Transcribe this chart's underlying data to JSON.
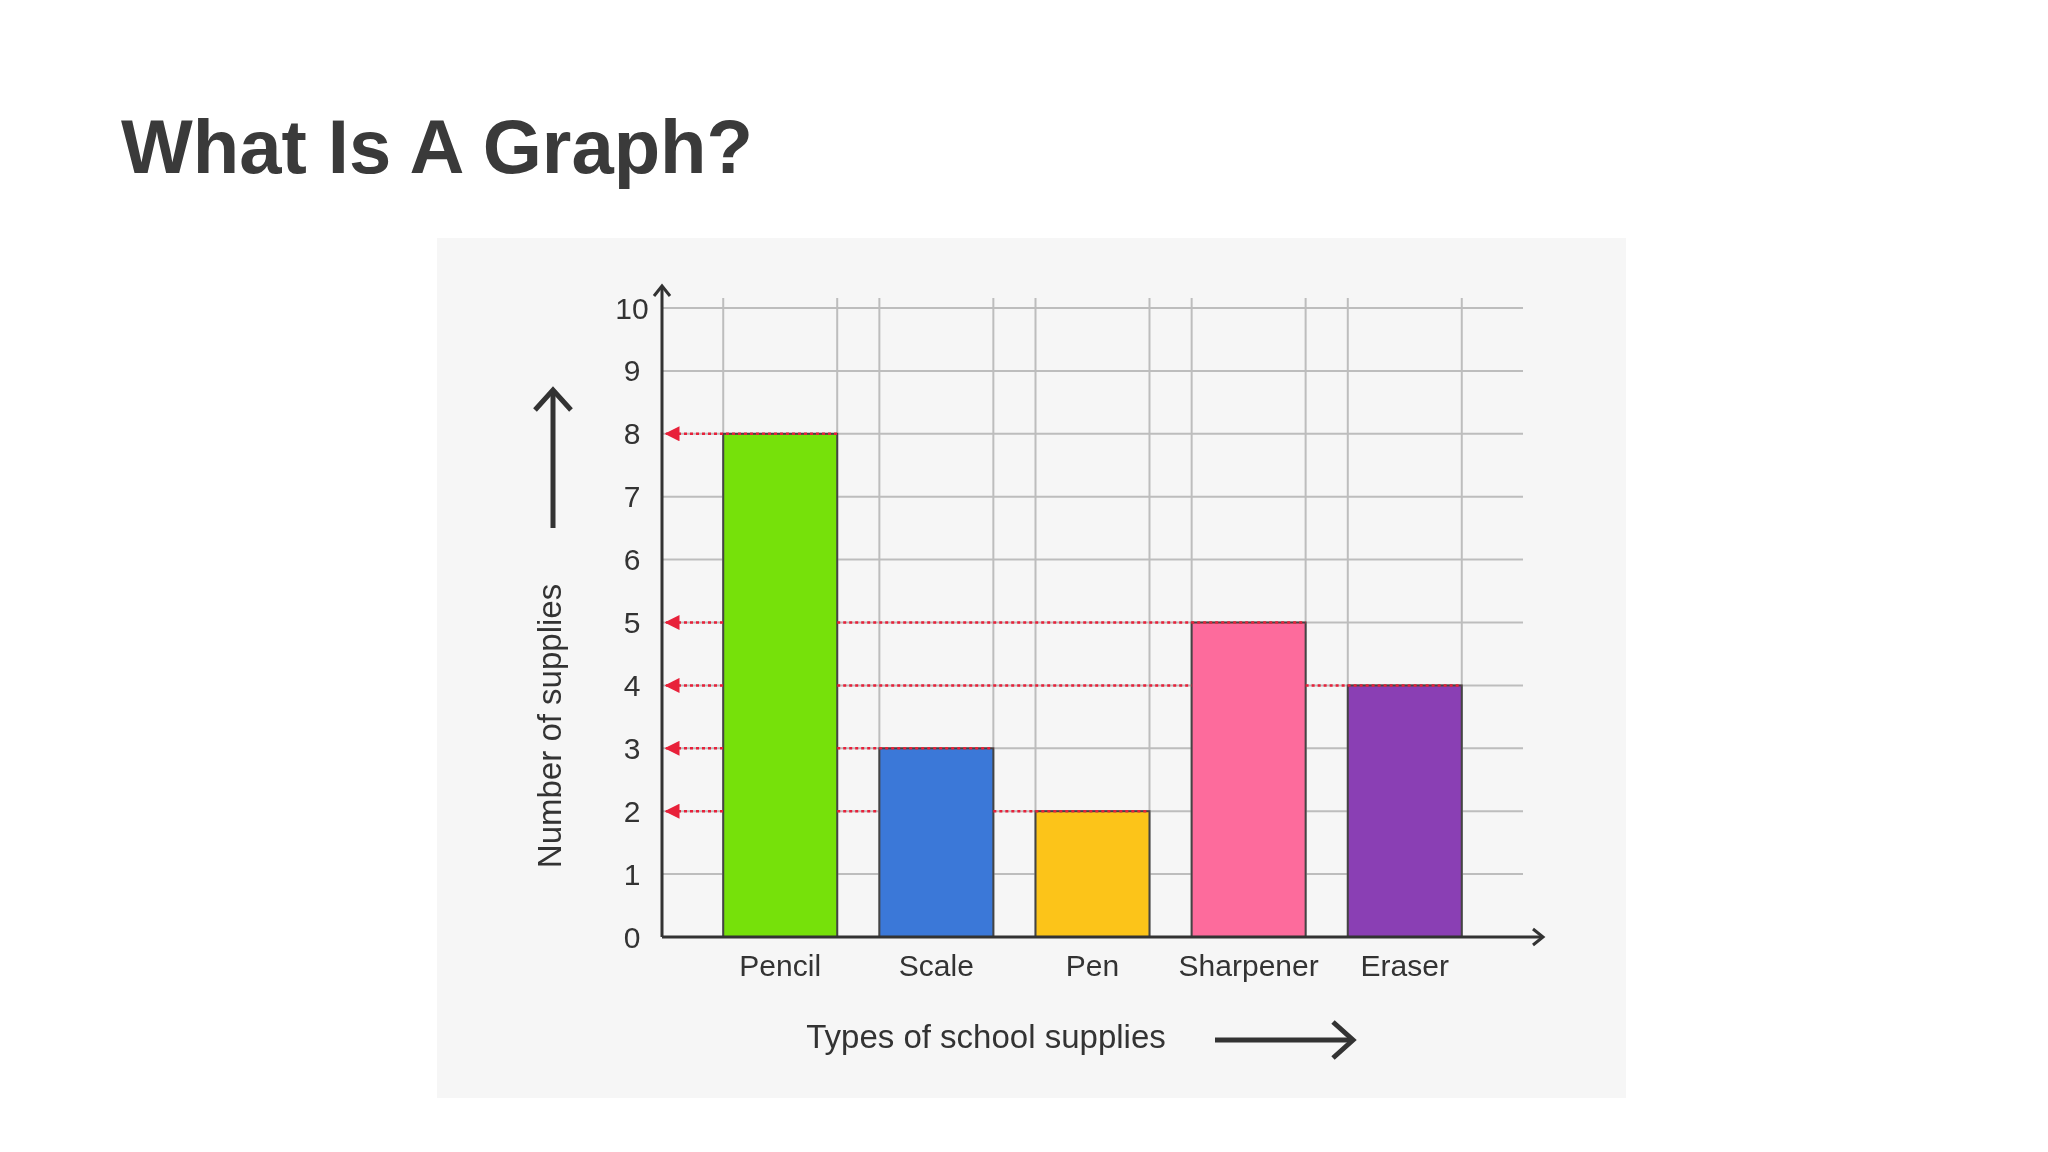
{
  "chart_data": {
    "type": "bar",
    "title": "What Is A Graph?",
    "xlabel": "Types of school supplies",
    "ylabel": "Number of supplies",
    "categories": [
      "Pencil",
      "Scale",
      "Pen",
      "Sharpener",
      "Eraser"
    ],
    "values": [
      8,
      3,
      2,
      5,
      4
    ],
    "colors": [
      "#76e10a",
      "#3b78d8",
      "#fcc419",
      "#fd6b9c",
      "#8a3fb4"
    ],
    "ylim": [
      0,
      10
    ],
    "yticks": [
      0,
      1,
      2,
      3,
      4,
      5,
      6,
      7,
      8,
      9,
      10
    ],
    "grid": true,
    "ref_lines": [
      {
        "axis": "y",
        "value": 8,
        "color": "#e8213a",
        "line_style": "dotted"
      },
      {
        "axis": "y",
        "value": 5,
        "color": "#e8213a",
        "line_style": "dotted"
      },
      {
        "axis": "y",
        "value": 4,
        "color": "#e8213a",
        "line_style": "dotted"
      },
      {
        "axis": "y",
        "value": 3,
        "color": "#e8213a",
        "line_style": "dotted"
      },
      {
        "axis": "y",
        "value": 2,
        "color": "#e8213a",
        "line_style": "dotted"
      }
    ]
  }
}
